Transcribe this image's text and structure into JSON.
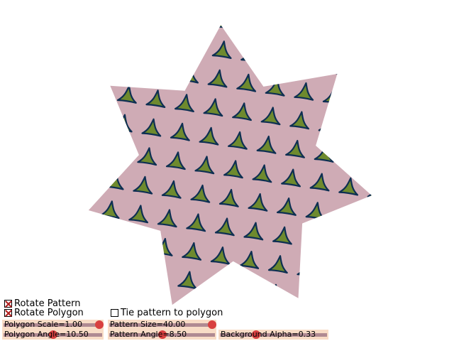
{
  "scene": {
    "polygon_fill": "#cfabb5",
    "motif_fill": "#6e8a2e",
    "motif_stroke": "#0d2f52"
  },
  "controls": {
    "rotate_pattern": {
      "label": "Rotate Pattern",
      "checked": true
    },
    "rotate_polygon": {
      "label": "Rotate Polygon",
      "checked": true
    },
    "tie_pattern": {
      "label": "Tie pattern to polygon",
      "checked": false
    },
    "polygon_scale": {
      "label": "Polygon Scale=1.00",
      "level": 1.0
    },
    "polygon_angle": {
      "label": "Polygon Angle=10.50",
      "level": 0.5
    },
    "pattern_size": {
      "label": "Pattern Size=40.00",
      "level": 1.0
    },
    "pattern_angle": {
      "label": "Pattern Angle=8.50",
      "level": 0.5
    },
    "background_alpha": {
      "label": "Background Alpha=0.33",
      "level": 0.33
    }
  }
}
